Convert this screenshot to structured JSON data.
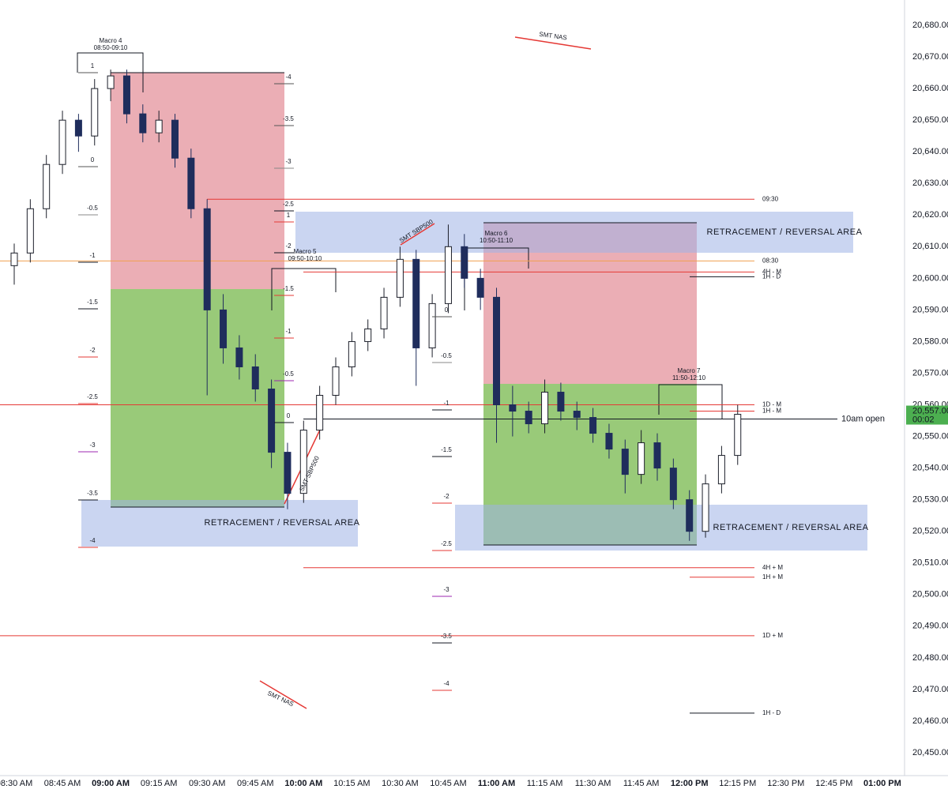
{
  "chart_data": {
    "type": "candlestick",
    "categories": [
      "08:30 AM",
      null,
      null,
      "08:45 AM",
      null,
      null,
      "09:00 AM",
      null,
      null,
      "09:15 AM",
      null,
      null,
      "09:30 AM",
      null,
      null,
      "09:45 AM",
      null,
      null,
      "10:00 AM",
      null,
      null,
      "10:15 AM",
      null,
      null,
      "10:30 AM",
      null,
      null,
      "10:45 AM",
      null,
      null,
      "11:00 AM",
      null,
      null,
      "11:15 AM",
      null,
      null,
      "11:30 AM",
      null,
      null,
      "11:45 AM",
      null,
      null,
      "12:00 PM",
      null,
      null,
      "12:15 PM",
      null,
      null,
      "12:30 PM",
      null,
      null,
      "12:45 PM",
      null,
      null,
      "01:00 PM"
    ],
    "open": [
      20604,
      20608,
      20622,
      20636,
      20650,
      20645,
      20660,
      20664,
      20652,
      20646,
      20650,
      20638,
      20622,
      20590,
      20578,
      20572,
      20565,
      20545,
      20532,
      20552,
      20563,
      20572,
      20580,
      20584,
      20594,
      20606,
      20578,
      20592,
      20610,
      20600,
      20594,
      20560,
      20558,
      20554,
      20564,
      20558,
      20556,
      20551,
      20546,
      20538,
      20548,
      20540,
      20530,
      20520,
      20535,
      20544,
      null,
      null,
      null,
      null,
      null,
      null,
      null,
      null,
      null
    ],
    "high": [
      20611,
      20625,
      20639,
      20653,
      20652,
      20663,
      20666,
      20666,
      20655,
      20653,
      20652,
      20641,
      20625,
      20595,
      20582,
      20576,
      20568,
      20548,
      20555,
      20566,
      20575,
      20583,
      20587,
      20597,
      20610,
      20609,
      20595,
      20617,
      20614,
      20603,
      20597,
      20566,
      20561,
      20568,
      20567,
      20561,
      20559,
      20554,
      20549,
      20552,
      20551,
      20543,
      20533,
      20538,
      20547,
      20560,
      null,
      null,
      null,
      null,
      null,
      null,
      null,
      null,
      null
    ],
    "low": [
      20598,
      20605,
      20619,
      20633,
      20640,
      20642,
      20656,
      20649,
      20643,
      20643,
      20635,
      20619,
      20563,
      20573,
      20568,
      20561,
      20540,
      20527,
      20529,
      20549,
      20560,
      20569,
      20577,
      20581,
      20591,
      20566,
      20575,
      20589,
      20597,
      20590,
      20548,
      20550,
      20551,
      20551,
      20555,
      20552,
      20548,
      20543,
      20532,
      20535,
      20536,
      20527,
      20517,
      20518,
      20532,
      20541,
      null,
      null,
      null,
      null,
      null,
      null,
      null,
      null,
      null
    ],
    "close": [
      20608,
      20622,
      20636,
      20650,
      20645,
      20660,
      20664,
      20652,
      20646,
      20650,
      20638,
      20622,
      20590,
      20578,
      20572,
      20565,
      20545,
      20532,
      20552,
      20563,
      20572,
      20580,
      20584,
      20594,
      20606,
      20578,
      20592,
      20610,
      20600,
      20594,
      20560,
      20558,
      20554,
      20564,
      20558,
      20556,
      20551,
      20546,
      20538,
      20548,
      20540,
      20530,
      20520,
      20535,
      20544,
      20557,
      null,
      null,
      null,
      null,
      null,
      null,
      null,
      null,
      null
    ],
    "up_color": "#1c1f2a",
    "down_color": "#1f2d5c",
    "ylim": [
      20444.5,
      20688
    ],
    "yticks": [
      {
        "value": 20450,
        "label": "20,450.00"
      },
      {
        "value": 20460,
        "label": "20,460.00"
      },
      {
        "value": 20470,
        "label": "20,470.00"
      },
      {
        "value": 20480,
        "label": "20,480.00"
      },
      {
        "value": 20490,
        "label": "20,490.00"
      },
      {
        "value": 20500,
        "label": "20,500.00"
      },
      {
        "value": 20510,
        "label": "20,510.00"
      },
      {
        "value": 20520,
        "label": "20,520.00"
      },
      {
        "value": 20530,
        "label": "20,530.00"
      },
      {
        "value": 20540,
        "label": "20,540.00"
      },
      {
        "value": 20550,
        "label": "20,550.00"
      },
      {
        "value": 20560,
        "label": "20,560.00"
      },
      {
        "value": 20570,
        "label": "20,570.00"
      },
      {
        "value": 20580,
        "label": "20,580.00"
      },
      {
        "value": 20590,
        "label": "20,590.00"
      },
      {
        "value": 20600,
        "label": "20,600.00"
      },
      {
        "value": 20610,
        "label": "20,610.00"
      },
      {
        "value": 20620,
        "label": "20,620.00"
      },
      {
        "value": 20630,
        "label": "20,630.00"
      },
      {
        "value": 20640,
        "label": "20,640.00"
      },
      {
        "value": 20650,
        "label": "20,650.00"
      },
      {
        "value": 20660,
        "label": "20,660.00"
      },
      {
        "value": 20670,
        "label": "20,670.00"
      },
      {
        "value": 20680,
        "label": "20,680.00"
      }
    ],
    "levels": [
      {
        "label": "09:30",
        "value": 20625,
        "color": "#e53935"
      },
      {
        "label": "08:30",
        "value": 20605.5,
        "color": "#f0a050"
      },
      {
        "label": "4H - M",
        "value": 20602,
        "color": "#e53935"
      },
      {
        "label": "1H - D",
        "value": 20600.5,
        "color": "#131722"
      },
      {
        "label": "1D - M",
        "value": 20560,
        "color": "#e53935"
      },
      {
        "label": "1H - M",
        "value": 20558,
        "color": "#e53935"
      },
      {
        "label": "10am open",
        "value": 20555.5,
        "color": "#131722"
      },
      {
        "label": "4H + M",
        "value": 20508.5,
        "color": "#e53935"
      },
      {
        "label": "1H + M",
        "value": 20505.5,
        "color": "#e53935"
      },
      {
        "label": "1D + M",
        "value": 20487,
        "color": "#e53935"
      },
      {
        "label": "1H - D",
        "value": 20462.5,
        "color": "#131722"
      }
    ],
    "annotations": {
      "macros": [
        {
          "name": "Macro 4",
          "time": "08:50-09:10"
        },
        {
          "name": "Macro 5",
          "time": "09:50-10:10"
        },
        {
          "name": "Macro 6",
          "time": "10:50-11:10"
        },
        {
          "name": "Macro 7",
          "time": "11:50-12:10"
        }
      ],
      "areas": [
        "RETRACEMENT / REVERSAL AREA",
        "RETRACEMENT / REVERSAL AREA",
        "RETRACEMENT / REVERSAL AREA"
      ],
      "smt": [
        "SMT NAS",
        "SMT SBP500",
        "SMT SBP500",
        "SMT NAS"
      ],
      "fib_labels": [
        "1",
        "0",
        "-0.5",
        "-1",
        "-1.5",
        "-2",
        "-2.5",
        "-3",
        "-3.5",
        "-4",
        "-4",
        "-3.5",
        "-3",
        "-2.5",
        "-2",
        "-1.5",
        "-1",
        "-0.5",
        "0",
        "1",
        "0",
        "-0.5",
        "-1",
        "-1.5",
        "-2",
        "-2.5",
        "-3",
        "-3.5",
        "-4"
      ]
    },
    "price_tag": {
      "price": "20,557.00",
      "timer": "00:02"
    }
  }
}
